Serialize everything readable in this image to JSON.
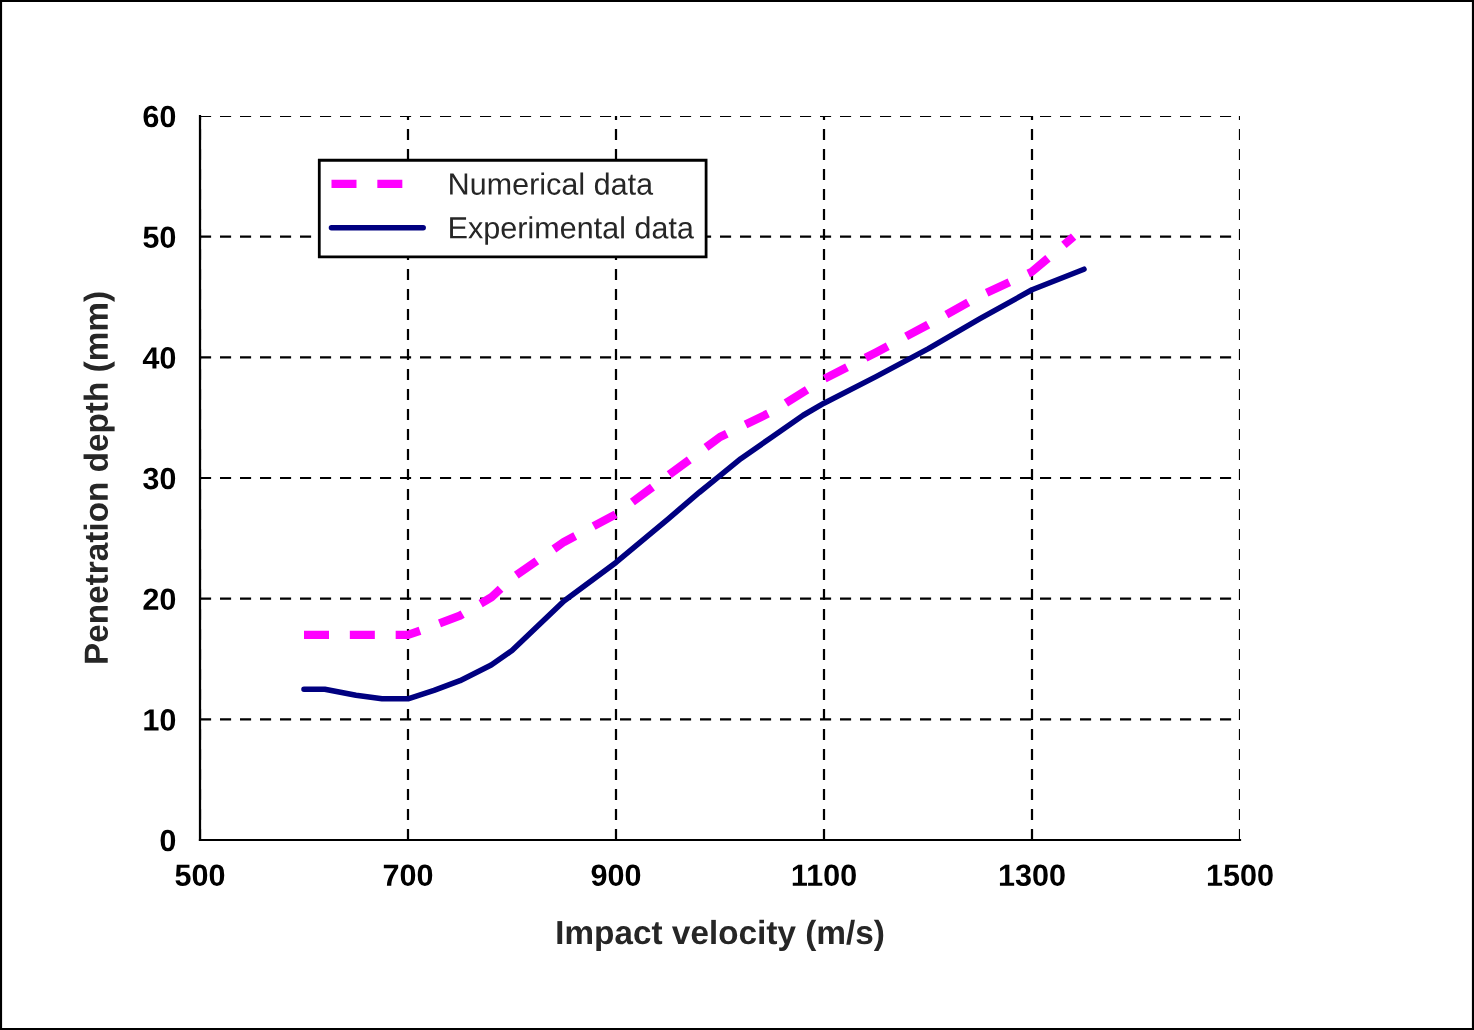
{
  "chart_data": {
    "type": "line",
    "xlabel": "Impact velocity (m/s)",
    "ylabel": "Penetration depth (mm)",
    "xlim": [
      500,
      1500
    ],
    "xticks": [
      500,
      700,
      900,
      1100,
      1300,
      1500
    ],
    "ylim": [
      0,
      60
    ],
    "yticks": [
      0,
      10,
      20,
      30,
      40,
      50,
      60
    ],
    "grid": true,
    "legend": "top left",
    "marker": "none",
    "series": [
      {
        "name": "Numerical data",
        "color": "#ff00ff",
        "line_style": "dashed",
        "x": [
          600,
          650,
          700,
          720,
          750,
          780,
          800,
          850,
          900,
          950,
          1000,
          1050,
          1100,
          1150,
          1200,
          1250,
          1300,
          1340
        ],
        "values": [
          17.0,
          17.0,
          17.0,
          17.6,
          18.6,
          20.1,
          21.7,
          24.7,
          27.0,
          30.2,
          33.4,
          35.5,
          38.2,
          40.4,
          42.7,
          45.1,
          47.1,
          50.0
        ]
      },
      {
        "name": "Experimental data",
        "color": "#000080",
        "line_style": "solid",
        "x": [
          600,
          620,
          650,
          675,
          700,
          725,
          750,
          780,
          800,
          850,
          900,
          950,
          980,
          1000,
          1020,
          1050,
          1080,
          1100,
          1150,
          1200,
          1250,
          1300,
          1350
        ],
        "values": [
          12.5,
          12.5,
          12.0,
          11.7,
          11.7,
          12.4,
          13.2,
          14.5,
          15.7,
          19.8,
          23.0,
          26.6,
          28.8,
          30.2,
          31.6,
          33.4,
          35.2,
          36.2,
          38.4,
          40.7,
          43.2,
          45.6,
          47.3
        ]
      }
    ]
  }
}
